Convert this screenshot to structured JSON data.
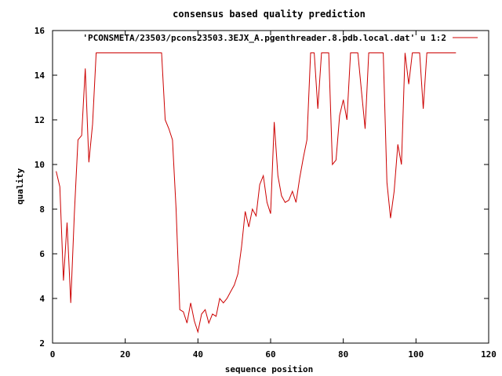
{
  "chart_data": {
    "type": "line",
    "title": "consensus based quality prediction",
    "xlabel": "sequence position",
    "ylabel": "quality",
    "xlim": [
      0,
      120
    ],
    "ylim": [
      2,
      16
    ],
    "xticks": [
      0,
      20,
      40,
      60,
      80,
      100,
      120
    ],
    "yticks": [
      2,
      4,
      6,
      8,
      10,
      12,
      14,
      16
    ],
    "grid": false,
    "legend_position": "top-right",
    "series": [
      {
        "name": "'PCONSMETA/23503/pcons23503.3EJX_A.pgenthreader.8.pdb.local.dat' u 1:2",
        "color": "#cc0000",
        "x": [
          1,
          2,
          3,
          4,
          5,
          6,
          7,
          8,
          9,
          10,
          11,
          12,
          13,
          14,
          15,
          16,
          17,
          18,
          19,
          20,
          21,
          22,
          23,
          24,
          25,
          26,
          27,
          28,
          29,
          30,
          31,
          32,
          33,
          34,
          35,
          36,
          37,
          38,
          39,
          40,
          41,
          42,
          43,
          44,
          45,
          46,
          47,
          48,
          49,
          50,
          51,
          52,
          53,
          54,
          55,
          56,
          57,
          58,
          59,
          60,
          61,
          62,
          63,
          64,
          65,
          66,
          67,
          68,
          69,
          70,
          71,
          72,
          73,
          74,
          75,
          76,
          77,
          78,
          79,
          80,
          81,
          82,
          83,
          84,
          85,
          86,
          87,
          88,
          89,
          90,
          91,
          92,
          93,
          94,
          95,
          96,
          97,
          98,
          99,
          100,
          101,
          102,
          103,
          104,
          105,
          106,
          107,
          108,
          109,
          110,
          111
        ],
        "y": [
          9.7,
          9.0,
          4.8,
          7.4,
          3.8,
          7.8,
          11.1,
          11.3,
          14.3,
          10.1,
          11.8,
          15.0,
          15.0,
          15.0,
          15.0,
          15.0,
          15.0,
          15.0,
          15.0,
          15.0,
          15.0,
          15.0,
          15.0,
          15.0,
          15.0,
          15.0,
          15.0,
          15.0,
          15.0,
          15.0,
          12.0,
          11.6,
          11.1,
          8.0,
          3.5,
          3.4,
          2.9,
          3.8,
          3.0,
          2.5,
          3.3,
          3.5,
          2.9,
          3.3,
          3.2,
          4.0,
          3.8,
          4.0,
          4.3,
          4.6,
          5.1,
          6.3,
          7.9,
          7.2,
          8.0,
          7.7,
          9.1,
          9.5,
          8.3,
          7.8,
          11.9,
          9.5,
          8.6,
          8.3,
          8.4,
          8.8,
          8.3,
          9.4,
          10.3,
          11.1,
          15.0,
          15.0,
          12.5,
          15.0,
          15.0,
          15.0,
          10.0,
          10.2,
          12.2,
          12.9,
          12.0,
          15.0,
          15.0,
          15.0,
          13.3,
          11.6,
          15.0,
          15.0,
          15.0,
          15.0,
          15.0,
          9.2,
          7.6,
          8.8,
          10.9,
          10.0,
          15.0,
          13.6,
          15.0,
          15.0,
          15.0,
          12.5,
          15.0,
          15.0,
          15.0,
          15.0,
          15.0,
          15.0,
          15.0,
          15.0,
          15.0
        ]
      }
    ]
  }
}
